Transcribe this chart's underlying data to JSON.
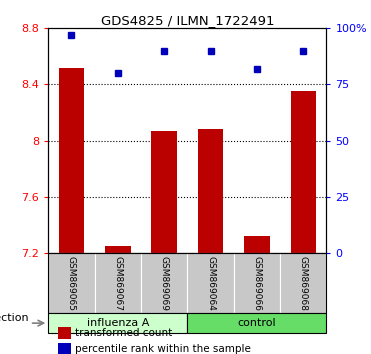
{
  "title": "GDS4825 / ILMN_1722491",
  "samples": [
    "GSM869065",
    "GSM869067",
    "GSM869069",
    "GSM869064",
    "GSM869066",
    "GSM869068"
  ],
  "groups": [
    "influenza A",
    "influenza A",
    "influenza A",
    "control",
    "control",
    "control"
  ],
  "group_labels": [
    "influenza A",
    "control"
  ],
  "group_colors_light": [
    "#ccffcc",
    "#66dd66"
  ],
  "bar_values": [
    8.52,
    7.25,
    8.07,
    8.08,
    7.32,
    8.35
  ],
  "percentile_values": [
    97,
    80,
    90,
    90,
    82,
    90
  ],
  "bar_color": "#bb0000",
  "dot_color": "#0000bb",
  "ylim_left": [
    7.2,
    8.8
  ],
  "ylim_right": [
    0,
    100
  ],
  "yticks_left": [
    7.2,
    7.6,
    8.0,
    8.4,
    8.8
  ],
  "yticks_right": [
    0,
    25,
    50,
    75,
    100
  ],
  "ytick_labels_left": [
    "7.2",
    "7.6",
    "8",
    "8.4",
    "8.8"
  ],
  "ytick_labels_right": [
    "0",
    "25",
    "50",
    "75",
    "100%"
  ],
  "bar_width": 0.55,
  "infection_label": "infection",
  "legend_bar_label": "transformed count",
  "legend_dot_label": "percentile rank within the sample",
  "sample_box_color": "#c8c8c8",
  "n_influenza": 3,
  "n_control": 3
}
